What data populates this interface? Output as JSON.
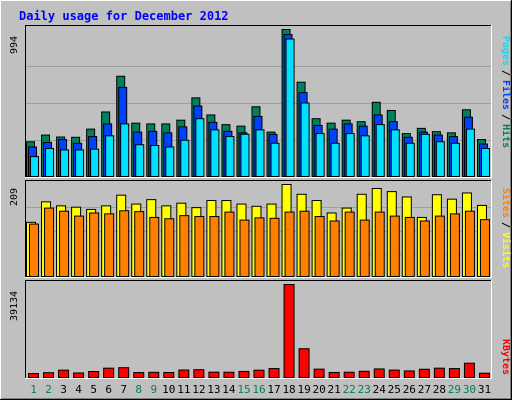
{
  "title": "Daily usage for December 2012",
  "colors": {
    "background": "#c0c0c0",
    "title": "#0000ff",
    "hits": "#00805c",
    "files": "#0040ff",
    "pages": "#00e0ff",
    "visits": "#ffff00",
    "sites": "#ff8000",
    "kbytes": "#ff0000",
    "weekend_label": "#00805c",
    "weekday_label": "#000000"
  },
  "chart_data": [
    {
      "type": "bar",
      "name": "hits-files-pages",
      "ymax_label": "994",
      "ylim": [
        0,
        994
      ],
      "legend": [
        "Pages",
        "Files",
        "Hits"
      ],
      "legend_separator": "/",
      "categories": [
        "1",
        "2",
        "3",
        "4",
        "5",
        "6",
        "7",
        "8",
        "9",
        "10",
        "11",
        "12",
        "13",
        "14",
        "15",
        "16",
        "17",
        "18",
        "19",
        "20",
        "21",
        "22",
        "23",
        "24",
        "25",
        "26",
        "27",
        "28",
        "29",
        "30",
        "31"
      ],
      "weekend_days": [
        "1",
        "2",
        "8",
        "9",
        "15",
        "16",
        "22",
        "23",
        "29",
        "30"
      ],
      "series": [
        {
          "name": "Hits",
          "values": [
            240,
            285,
            272,
            270,
            325,
            440,
            680,
            365,
            360,
            360,
            385,
            535,
            420,
            355,
            345,
            475,
            305,
            994,
            640,
            395,
            365,
            385,
            375,
            505,
            450,
            295,
            330,
            308,
            300,
            455,
            255
          ]
        },
        {
          "name": "Files",
          "values": [
            205,
            235,
            255,
            230,
            275,
            360,
            605,
            305,
            310,
            300,
            340,
            480,
            370,
            310,
            300,
            410,
            290,
            960,
            570,
            350,
            325,
            360,
            345,
            420,
            375,
            270,
            305,
            285,
            275,
            405,
            225
          ]
        },
        {
          "name": "Pages",
          "values": [
            140,
            195,
            185,
            185,
            190,
            280,
            360,
            220,
            215,
            205,
            250,
            395,
            320,
            275,
            290,
            320,
            230,
            930,
            500,
            295,
            230,
            295,
            280,
            355,
            320,
            230,
            290,
            240,
            230,
            325,
            195
          ]
        }
      ]
    },
    {
      "type": "bar",
      "name": "visits-sites",
      "ymax_label": "209",
      "ylim": [
        0,
        209
      ],
      "legend": [
        "Sites",
        "Visits"
      ],
      "legend_separator": "/",
      "categories": [
        "1",
        "2",
        "3",
        "4",
        "5",
        "6",
        "7",
        "8",
        "9",
        "10",
        "11",
        "12",
        "13",
        "14",
        "15",
        "16",
        "17",
        "18",
        "19",
        "20",
        "21",
        "22",
        "23",
        "24",
        "25",
        "26",
        "27",
        "28",
        "29",
        "30",
        "31"
      ],
      "series": [
        {
          "name": "Visits",
          "values": [
            124,
            170,
            161,
            158,
            153,
            161,
            185,
            165,
            175,
            161,
            167,
            157,
            173,
            173,
            165,
            160,
            165,
            209,
            187,
            173,
            145,
            156,
            187,
            200,
            193,
            181,
            135,
            186,
            176,
            190,
            162
          ]
        },
        {
          "name": "Sites",
          "values": [
            120,
            156,
            149,
            138,
            145,
            143,
            150,
            148,
            135,
            132,
            139,
            137,
            137,
            147,
            129,
            134,
            133,
            147,
            149,
            137,
            127,
            147,
            129,
            147,
            138,
            135,
            127,
            138,
            143,
            149,
            130
          ]
        }
      ]
    },
    {
      "type": "bar",
      "name": "kbytes",
      "ymax_label": "39134",
      "ylim": [
        0,
        39134
      ],
      "legend": [
        "KBytes"
      ],
      "categories": [
        "1",
        "2",
        "3",
        "4",
        "5",
        "6",
        "7",
        "8",
        "9",
        "10",
        "11",
        "12",
        "13",
        "14",
        "15",
        "16",
        "17",
        "18",
        "19",
        "20",
        "21",
        "22",
        "23",
        "24",
        "25",
        "26",
        "27",
        "28",
        "29",
        "30",
        "31"
      ],
      "series": [
        {
          "name": "KBytes",
          "values": [
            2050,
            2420,
            3480,
            2310,
            2910,
            4300,
            4500,
            2470,
            2580,
            2500,
            3530,
            3670,
            2650,
            2600,
            2950,
            3460,
            4140,
            39134,
            12400,
            3900,
            2510,
            2610,
            3010,
            3990,
            3500,
            3150,
            3850,
            4300,
            4140,
            6360,
            2200
          ]
        }
      ]
    }
  ]
}
